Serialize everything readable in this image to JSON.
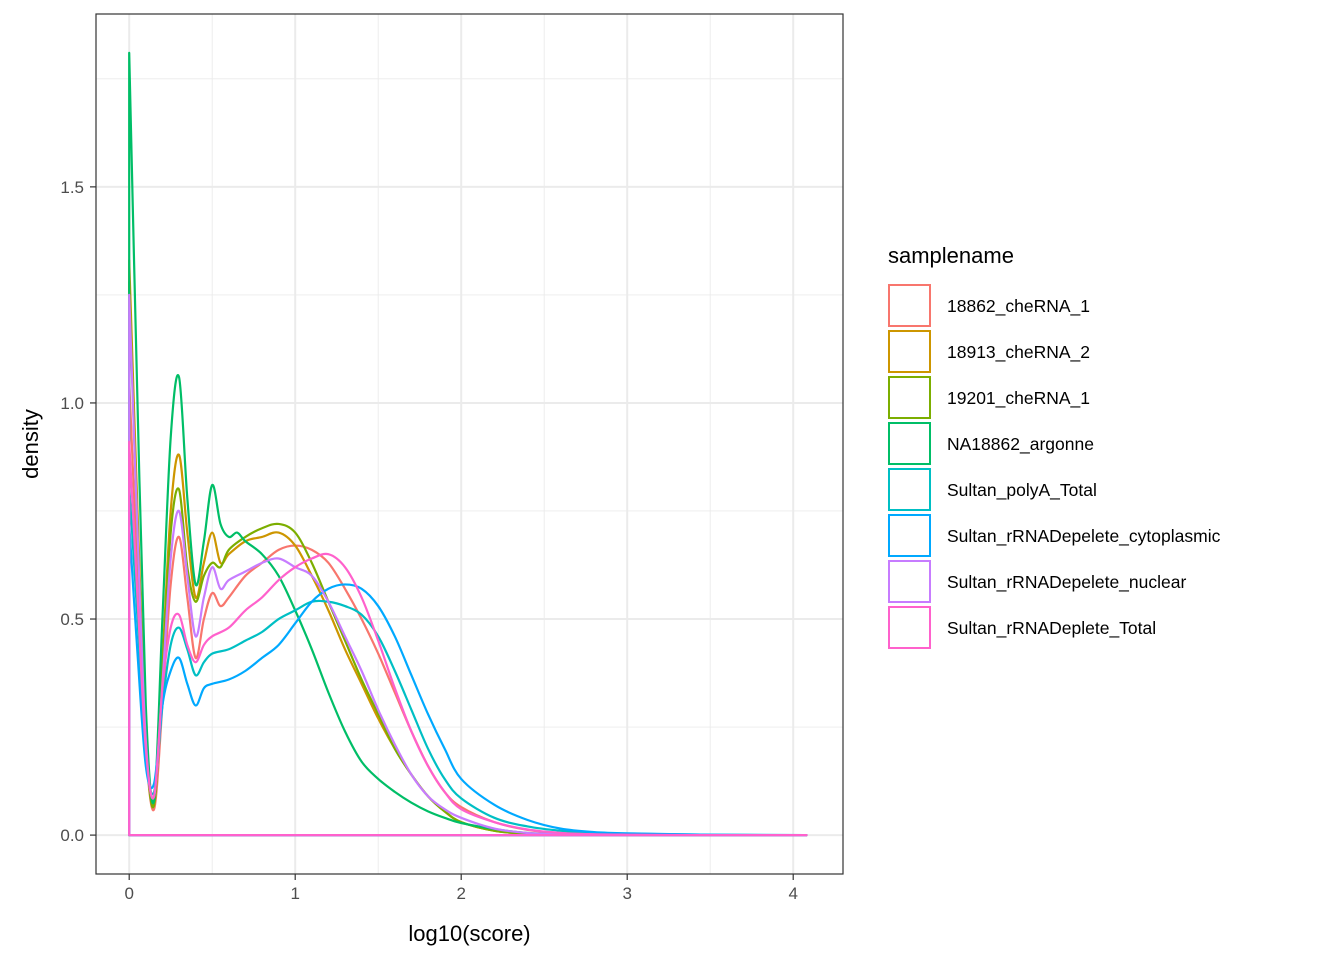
{
  "chart_data": {
    "type": "line",
    "xlabel": "log10(score)",
    "ylabel": "density",
    "xlim": [
      -0.2,
      4.3
    ],
    "ylim": [
      -0.09,
      1.9
    ],
    "x_ticks": [
      0,
      1,
      2,
      3,
      4
    ],
    "x_tick_labels": [
      "0",
      "1",
      "2",
      "3",
      "4"
    ],
    "y_ticks": [
      0.0,
      0.5,
      1.0,
      1.5
    ],
    "y_tick_labels": [
      "0.0",
      "0.5",
      "1.0",
      "1.5"
    ],
    "grid": true,
    "legend": {
      "title": "samplename",
      "position": "right"
    },
    "series": [
      {
        "name": "18862_cheRNA_1",
        "color": "#F8766D",
        "x": [
          0,
          0.05,
          0.1,
          0.15,
          0.2,
          0.25,
          0.3,
          0.35,
          0.4,
          0.45,
          0.5,
          0.55,
          0.6,
          0.7,
          0.8,
          0.9,
          1.0,
          1.1,
          1.2,
          1.3,
          1.4,
          1.5,
          1.6,
          1.7,
          1.8,
          1.9,
          2.0,
          2.2,
          2.4,
          2.6,
          2.8,
          3.0,
          3.5,
          4.08
        ],
        "y": [
          1.05,
          0.6,
          0.2,
          0.06,
          0.3,
          0.58,
          0.69,
          0.55,
          0.41,
          0.5,
          0.56,
          0.53,
          0.55,
          0.6,
          0.63,
          0.66,
          0.67,
          0.66,
          0.63,
          0.57,
          0.5,
          0.42,
          0.33,
          0.24,
          0.16,
          0.1,
          0.065,
          0.03,
          0.012,
          0.005,
          0.002,
          0.001,
          0.0,
          0.0
        ]
      },
      {
        "name": "18913_cheRNA_2",
        "color": "#CD9600",
        "x": [
          0,
          0.05,
          0.1,
          0.15,
          0.2,
          0.25,
          0.3,
          0.35,
          0.4,
          0.45,
          0.5,
          0.55,
          0.6,
          0.7,
          0.8,
          0.9,
          1.0,
          1.1,
          1.2,
          1.3,
          1.4,
          1.5,
          1.6,
          1.7,
          1.8,
          1.9,
          2.0,
          2.2,
          2.4,
          2.6,
          2.8,
          3.0,
          3.5,
          4.08
        ],
        "y": [
          1.33,
          0.75,
          0.25,
          0.07,
          0.4,
          0.75,
          0.88,
          0.7,
          0.55,
          0.63,
          0.7,
          0.63,
          0.65,
          0.68,
          0.69,
          0.7,
          0.67,
          0.6,
          0.52,
          0.43,
          0.35,
          0.27,
          0.2,
          0.14,
          0.09,
          0.055,
          0.03,
          0.01,
          0.003,
          0.001,
          0.0,
          0.0,
          0.0,
          0.0
        ]
      },
      {
        "name": "19201_cheRNA_1",
        "color": "#7CAE00",
        "x": [
          0,
          0.05,
          0.1,
          0.15,
          0.2,
          0.25,
          0.3,
          0.35,
          0.4,
          0.45,
          0.5,
          0.55,
          0.6,
          0.7,
          0.8,
          0.9,
          1.0,
          1.1,
          1.2,
          1.3,
          1.4,
          1.5,
          1.6,
          1.7,
          1.8,
          1.9,
          2.0,
          2.2,
          2.4,
          2.6,
          2.8,
          3.0,
          3.5,
          4.08
        ],
        "y": [
          1.28,
          0.7,
          0.22,
          0.07,
          0.38,
          0.7,
          0.8,
          0.62,
          0.54,
          0.6,
          0.63,
          0.62,
          0.66,
          0.69,
          0.71,
          0.72,
          0.7,
          0.63,
          0.54,
          0.45,
          0.36,
          0.28,
          0.2,
          0.14,
          0.09,
          0.055,
          0.03,
          0.01,
          0.003,
          0.001,
          0.0,
          0.0,
          0.0,
          0.0
        ]
      },
      {
        "name": "NA18862_argonne",
        "color": "#00BE67",
        "x": [
          0,
          0.05,
          0.1,
          0.15,
          0.2,
          0.25,
          0.3,
          0.35,
          0.4,
          0.45,
          0.5,
          0.55,
          0.6,
          0.65,
          0.7,
          0.8,
          0.9,
          1.0,
          1.1,
          1.2,
          1.3,
          1.4,
          1.5,
          1.6,
          1.7,
          1.8,
          1.9,
          2.0,
          2.2,
          2.4,
          2.6,
          2.8,
          3.0,
          3.5,
          4.08
        ],
        "y": [
          1.81,
          1.0,
          0.3,
          0.08,
          0.5,
          0.92,
          1.06,
          0.78,
          0.58,
          0.68,
          0.81,
          0.72,
          0.69,
          0.7,
          0.68,
          0.65,
          0.6,
          0.52,
          0.43,
          0.33,
          0.24,
          0.17,
          0.13,
          0.1,
          0.075,
          0.055,
          0.04,
          0.028,
          0.014,
          0.005,
          0.002,
          0.001,
          0.0,
          0.0,
          0.0
        ]
      },
      {
        "name": "Sultan_polyA_Total",
        "color": "#00BFC4",
        "x": [
          0,
          0.05,
          0.1,
          0.15,
          0.2,
          0.25,
          0.3,
          0.35,
          0.4,
          0.45,
          0.5,
          0.6,
          0.7,
          0.8,
          0.9,
          1.0,
          1.1,
          1.2,
          1.3,
          1.4,
          1.5,
          1.6,
          1.7,
          1.8,
          1.9,
          2.0,
          2.2,
          2.4,
          2.6,
          2.8,
          3.0,
          3.5,
          4.08
        ],
        "y": [
          0.81,
          0.5,
          0.18,
          0.1,
          0.3,
          0.44,
          0.48,
          0.43,
          0.37,
          0.4,
          0.42,
          0.43,
          0.45,
          0.47,
          0.5,
          0.52,
          0.54,
          0.54,
          0.53,
          0.51,
          0.46,
          0.38,
          0.29,
          0.2,
          0.13,
          0.085,
          0.04,
          0.02,
          0.01,
          0.005,
          0.003,
          0.001,
          0.0
        ]
      },
      {
        "name": "Sultan_rRNADepelete_cytoplasmic",
        "color": "#00A9FF",
        "x": [
          0,
          0.05,
          0.1,
          0.15,
          0.2,
          0.25,
          0.3,
          0.35,
          0.4,
          0.45,
          0.5,
          0.6,
          0.7,
          0.8,
          0.9,
          1.0,
          1.1,
          1.2,
          1.3,
          1.4,
          1.5,
          1.6,
          1.7,
          1.8,
          1.9,
          2.0,
          2.2,
          2.4,
          2.6,
          2.8,
          3.0,
          3.5,
          4.08
        ],
        "y": [
          0.72,
          0.42,
          0.16,
          0.12,
          0.3,
          0.38,
          0.41,
          0.35,
          0.3,
          0.34,
          0.35,
          0.36,
          0.38,
          0.41,
          0.44,
          0.49,
          0.54,
          0.57,
          0.58,
          0.57,
          0.53,
          0.46,
          0.37,
          0.28,
          0.2,
          0.13,
          0.07,
          0.035,
          0.015,
          0.007,
          0.004,
          0.001,
          0.0
        ]
      },
      {
        "name": "Sultan_rRNADepelete_nuclear",
        "color": "#C77CFF",
        "x": [
          0,
          0.05,
          0.1,
          0.15,
          0.2,
          0.25,
          0.3,
          0.35,
          0.4,
          0.45,
          0.5,
          0.55,
          0.6,
          0.7,
          0.8,
          0.9,
          1.0,
          1.1,
          1.2,
          1.3,
          1.4,
          1.5,
          1.6,
          1.7,
          1.8,
          1.9,
          2.0,
          2.2,
          2.4,
          2.6,
          2.8,
          3.0,
          3.5,
          4.08
        ],
        "y": [
          1.25,
          0.7,
          0.22,
          0.09,
          0.35,
          0.64,
          0.75,
          0.6,
          0.46,
          0.55,
          0.62,
          0.57,
          0.59,
          0.61,
          0.63,
          0.64,
          0.62,
          0.6,
          0.54,
          0.46,
          0.38,
          0.29,
          0.21,
          0.14,
          0.09,
          0.06,
          0.04,
          0.015,
          0.005,
          0.002,
          0.001,
          0.0,
          0.0,
          0.0
        ]
      },
      {
        "name": "Sultan_rRNADeplete_Total",
        "color": "#FF61CC",
        "x": [
          0,
          0.05,
          0.1,
          0.15,
          0.2,
          0.25,
          0.3,
          0.35,
          0.4,
          0.45,
          0.5,
          0.6,
          0.7,
          0.8,
          0.9,
          1.0,
          1.1,
          1.2,
          1.3,
          1.4,
          1.5,
          1.6,
          1.7,
          1.8,
          1.9,
          2.0,
          2.2,
          2.4,
          2.6,
          2.8,
          3.0,
          3.5,
          4.08
        ],
        "y": [
          0.91,
          0.55,
          0.2,
          0.09,
          0.34,
          0.48,
          0.51,
          0.44,
          0.4,
          0.44,
          0.46,
          0.48,
          0.52,
          0.55,
          0.59,
          0.62,
          0.64,
          0.65,
          0.62,
          0.55,
          0.45,
          0.34,
          0.24,
          0.16,
          0.1,
          0.06,
          0.03,
          0.013,
          0.005,
          0.002,
          0.001,
          0.0,
          0.0
        ]
      }
    ]
  }
}
